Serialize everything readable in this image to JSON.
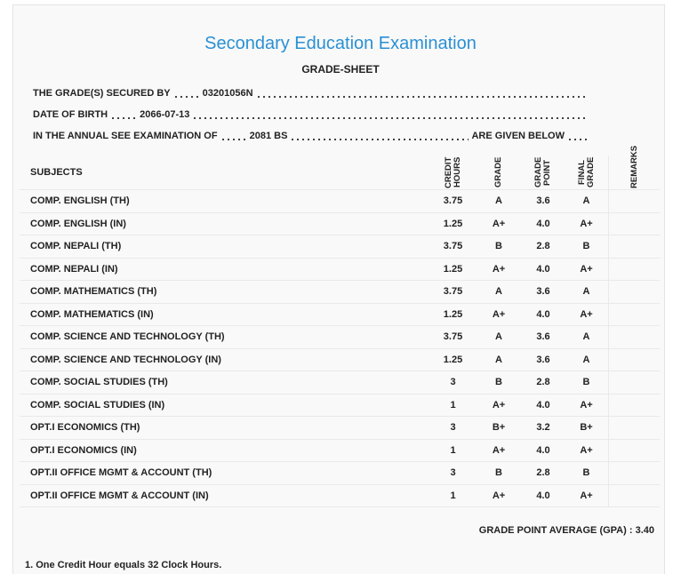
{
  "header": {
    "title": "Secondary Education Examination",
    "subtitle": "GRADE-SHEET"
  },
  "info": [
    {
      "label": "THE GRADE(S) SECURED BY",
      "value": "03201056N"
    },
    {
      "label": "DATE OF BIRTH",
      "value": "2066-07-13"
    },
    {
      "label": "IN THE ANNUAL SEE EXAMINATION OF",
      "value": "2081 BS",
      "suffix": "ARE GIVEN BELOW"
    }
  ],
  "table": {
    "columns": [
      "SUBJECTS",
      "CREDIT HOURS",
      "GRADE",
      "GRADE POINT",
      "FINAL GRADE",
      "REMARKS"
    ],
    "rows": [
      [
        "COMP. ENGLISH (TH)",
        "3.75",
        "A",
        "3.6",
        "A"
      ],
      [
        "COMP. ENGLISH (IN)",
        "1.25",
        "A+",
        "4.0",
        "A+"
      ],
      [
        "COMP. NEPALI (TH)",
        "3.75",
        "B",
        "2.8",
        "B"
      ],
      [
        "COMP. NEPALI (IN)",
        "1.25",
        "A+",
        "4.0",
        "A+"
      ],
      [
        "COMP. MATHEMATICS (TH)",
        "3.75",
        "A",
        "3.6",
        "A"
      ],
      [
        "COMP. MATHEMATICS (IN)",
        "1.25",
        "A+",
        "4.0",
        "A+"
      ],
      [
        "COMP. SCIENCE AND TECHNOLOGY (TH)",
        "3.75",
        "A",
        "3.6",
        "A"
      ],
      [
        "COMP. SCIENCE AND TECHNOLOGY (IN)",
        "1.25",
        "A",
        "3.6",
        "A"
      ],
      [
        "COMP. SOCIAL STUDIES (TH)",
        "3",
        "B",
        "2.8",
        "B"
      ],
      [
        "COMP. SOCIAL STUDIES (IN)",
        "1",
        "A+",
        "4.0",
        "A+"
      ],
      [
        "OPT.I ECONOMICS (TH)",
        "3",
        "B+",
        "3.2",
        "B+"
      ],
      [
        "OPT.I ECONOMICS (IN)",
        "1",
        "A+",
        "4.0",
        "A+"
      ],
      [
        "OPT.II OFFICE MGMT & ACCOUNT (TH)",
        "3",
        "B",
        "2.8",
        "B"
      ],
      [
        "OPT.II OFFICE MGMT & ACCOUNT (IN)",
        "1",
        "A+",
        "4.0",
        "A+"
      ]
    ]
  },
  "gpa": {
    "label": "GRADE POINT AVERAGE (GPA) :",
    "value": "3.40"
  },
  "footnote": "1. One Credit Hour equals 32 Clock Hours."
}
